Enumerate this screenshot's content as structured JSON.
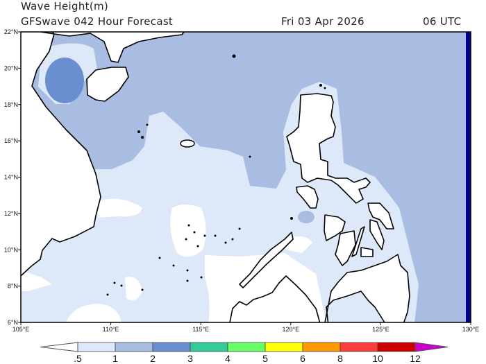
{
  "header": {
    "title": "Wave Height(m)",
    "subtitle": "GFSwave 042 Hour Forecast",
    "date": "Fri 03 Apr 2026",
    "time": "06 UTC"
  },
  "map": {
    "region": "South China Sea / Philippines",
    "lon_range": [
      105,
      130
    ],
    "lat_range": [
      6,
      22
    ],
    "lon_ticks": [
      "105°E",
      "110°E",
      "115°E",
      "120°E",
      "125°E",
      "130°E"
    ],
    "lat_ticks": [
      "22°N",
      "20°N",
      "18°N",
      "16°N",
      "14°N",
      "12°N",
      "10°N",
      "8°N",
      "6°N"
    ]
  },
  "colorbar": {
    "labels": [
      ".5",
      "1",
      "2",
      "3",
      "4",
      "5",
      "6",
      "8",
      "10",
      "12"
    ],
    "colors": [
      "#ffffff",
      "#dde9f8",
      "#a9bde2",
      "#6a8fd0",
      "#33cc99",
      "#66ff66",
      "#ffff00",
      "#ff9900",
      "#ff3c3c",
      "#cc0000",
      "#cc00cc"
    ]
  }
}
